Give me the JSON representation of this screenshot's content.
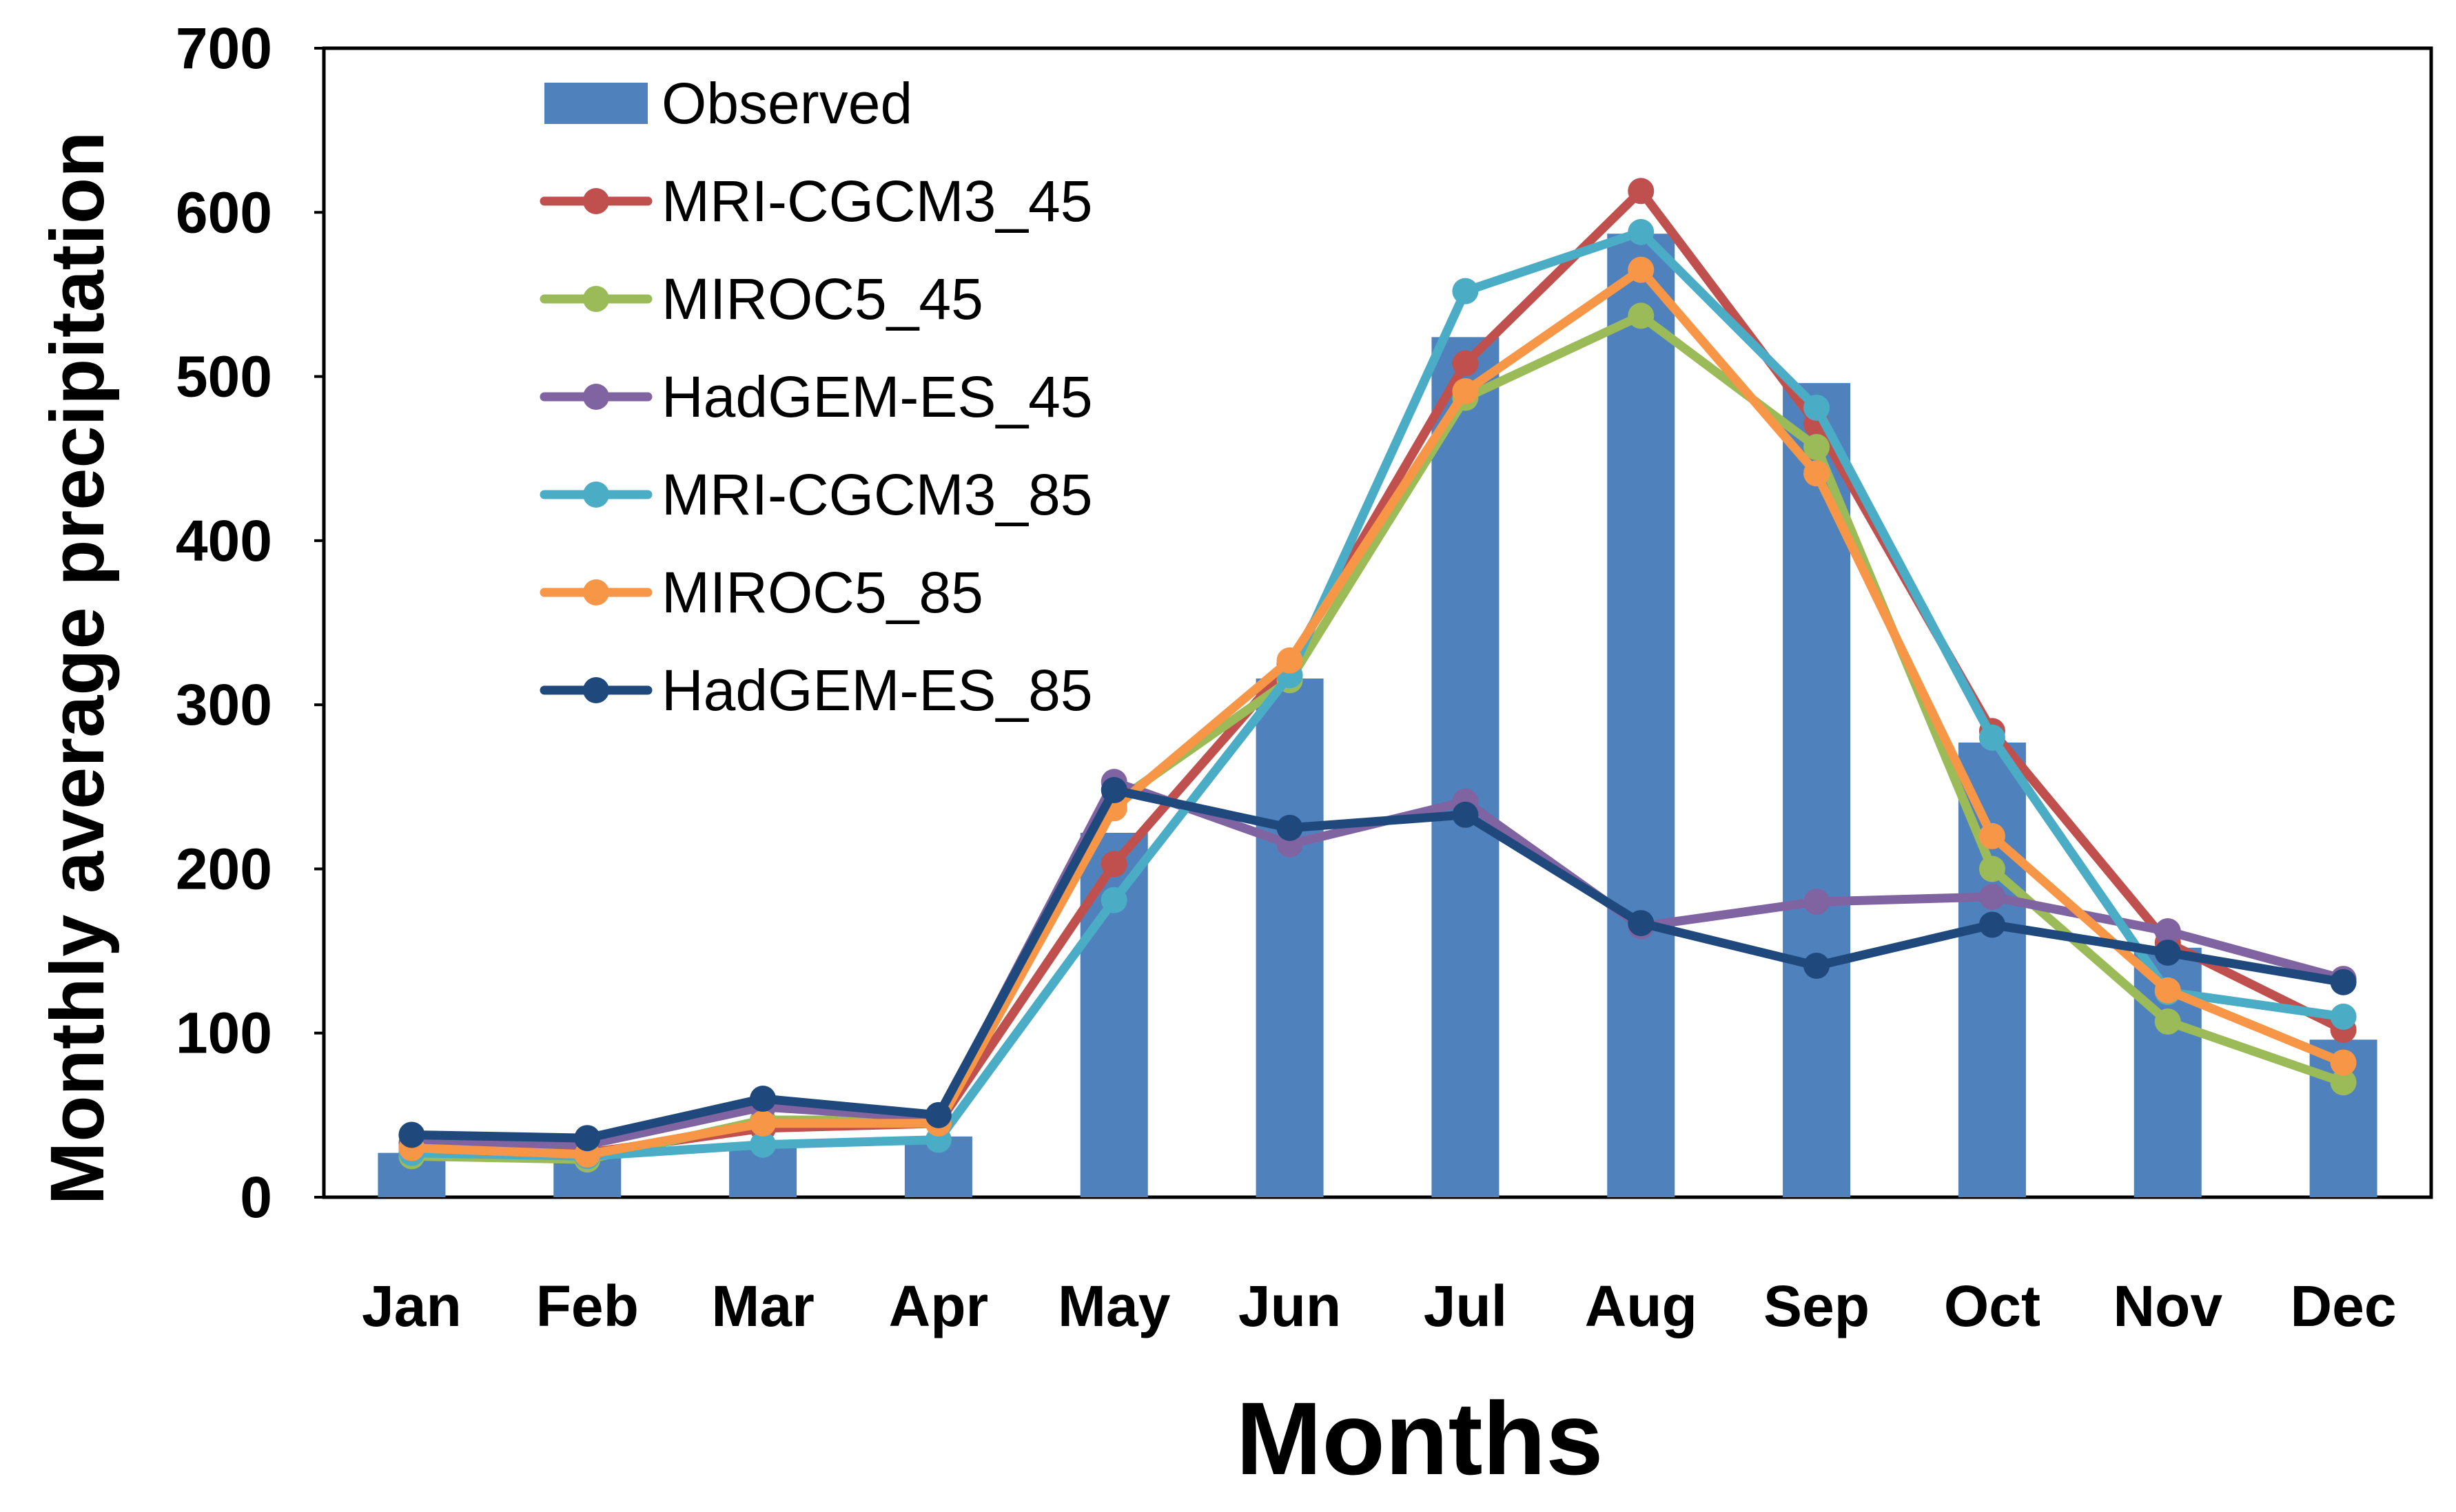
{
  "chart_data": {
    "type": "bar",
    "title": "",
    "xlabel": "Months",
    "ylabel": "Monthly average precipitation",
    "ylim": [
      0,
      700
    ],
    "yticks": [
      0,
      100,
      200,
      300,
      400,
      500,
      600,
      700
    ],
    "categories": [
      "Jan",
      "Feb",
      "Mar",
      "Apr",
      "May",
      "Jun",
      "Jul",
      "Aug",
      "Sep",
      "Oct",
      "Nov",
      "Dec"
    ],
    "grid": false,
    "legend_position": "top-left",
    "bar_series": {
      "name": "Observed",
      "color": "#4F81BD",
      "values": [
        27,
        27,
        32,
        37,
        222,
        316,
        524,
        587,
        496,
        277,
        152,
        96
      ]
    },
    "line_series": [
      {
        "name": "MRI-CGCM3_45",
        "color": "#C0504D",
        "values": [
          30,
          27,
          42,
          45,
          203,
          325,
          508,
          613,
          471,
          284,
          155,
          102
        ]
      },
      {
        "name": "MIROC5_45",
        "color": "#9BBB59",
        "values": [
          25,
          23,
          47,
          47,
          240,
          315,
          487,
          537,
          457,
          200,
          107,
          70
        ]
      },
      {
        "name": "HadGEM-ES_45",
        "color": "#8064A2",
        "values": [
          33,
          32,
          55,
          48,
          253,
          215,
          241,
          165,
          180,
          183,
          162,
          133
        ]
      },
      {
        "name": "MRI-CGCM3_85",
        "color": "#4BACC6",
        "values": [
          27,
          25,
          32,
          35,
          181,
          318,
          552,
          588,
          481,
          280,
          125,
          110
        ]
      },
      {
        "name": "MIROC5_85",
        "color": "#F79646",
        "values": [
          30,
          26,
          45,
          45,
          237,
          327,
          491,
          565,
          441,
          220,
          126,
          82
        ]
      },
      {
        "name": "HadGEM-ES_85",
        "color": "#1F497D",
        "values": [
          38,
          36,
          60,
          50,
          248,
          225,
          233,
          167,
          141,
          166,
          149,
          131
        ]
      }
    ]
  }
}
